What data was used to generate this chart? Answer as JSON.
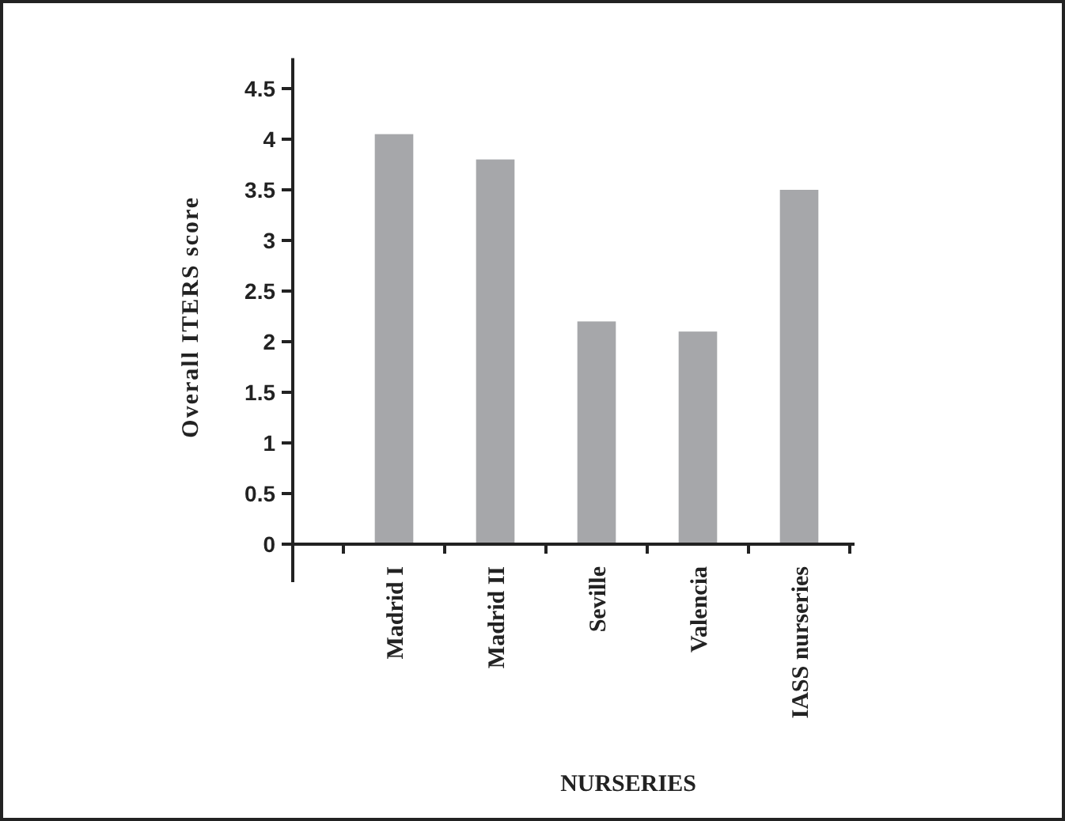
{
  "chart_data": {
    "type": "bar",
    "xlabel": "NURSERIES",
    "ylabel": "Overall ITERS score",
    "categories": [
      "Madrid I",
      "Madrid II",
      "Seville",
      "Valencia",
      "IASS nurseries"
    ],
    "values": [
      4.05,
      3.8,
      2.2,
      2.1,
      3.5
    ],
    "color": "#a6a7aa",
    "ylim": [
      0,
      4.8
    ],
    "yticks": [
      0,
      0.5,
      1,
      1.5,
      2,
      2.5,
      3,
      3.5,
      4,
      4.5
    ],
    "grid": false
  }
}
